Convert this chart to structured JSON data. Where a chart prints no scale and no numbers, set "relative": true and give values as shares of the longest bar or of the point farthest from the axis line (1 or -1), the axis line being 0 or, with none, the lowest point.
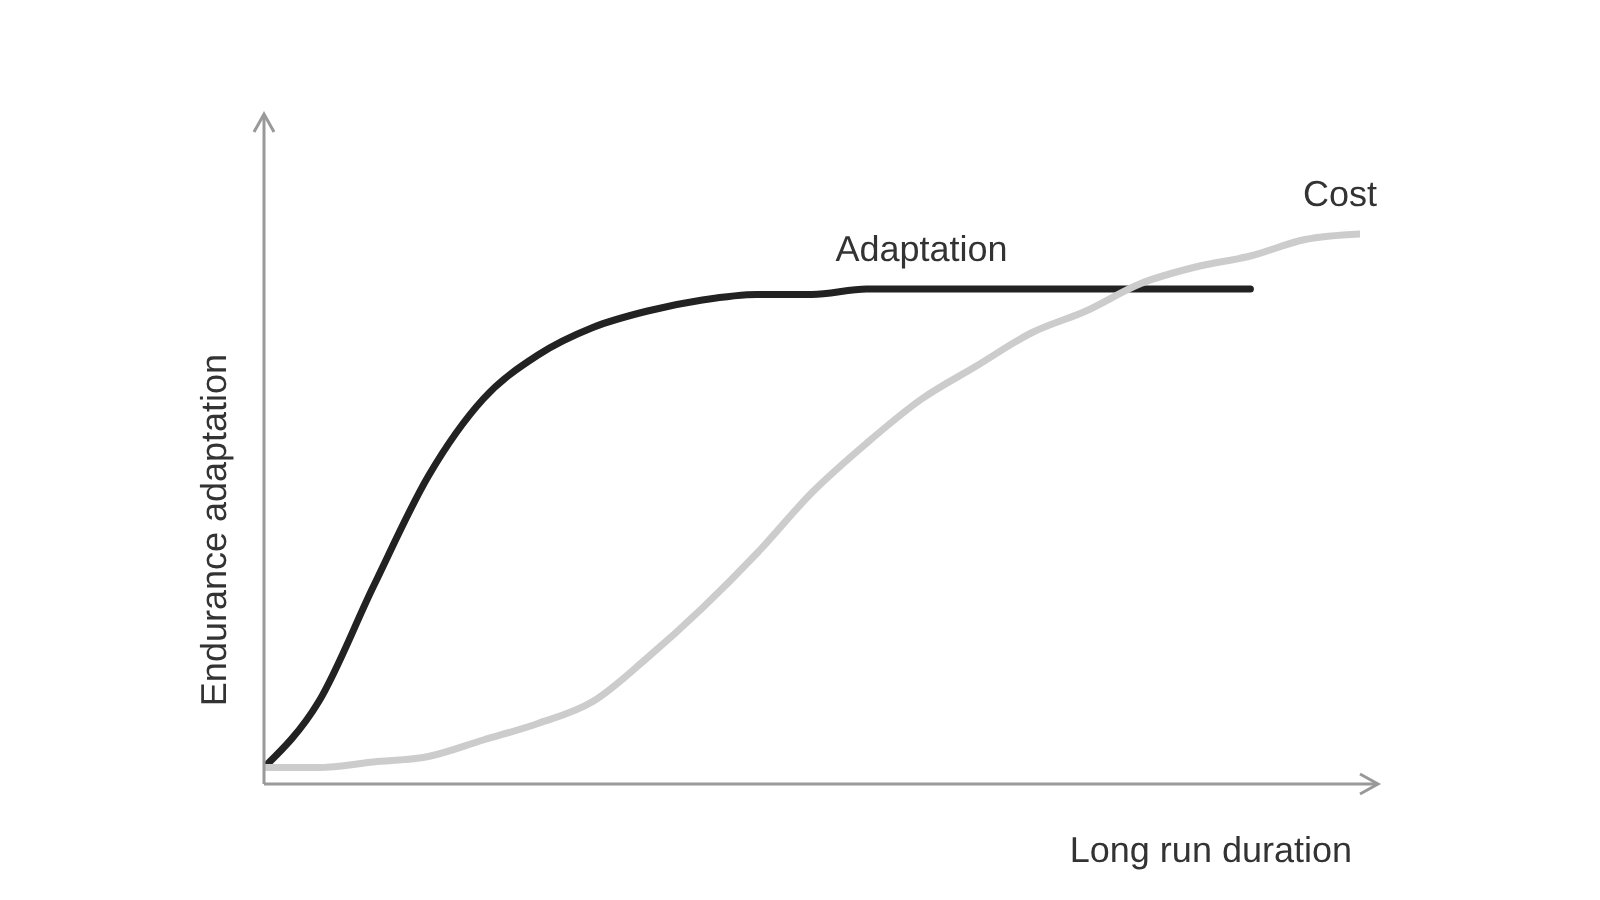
{
  "chart_data": {
    "type": "line",
    "relative": true,
    "xlabel": "Long run duration",
    "ylabel": "Endurance adaptation",
    "categories": [
      null,
      null,
      null,
      null,
      null,
      null,
      null,
      null,
      null,
      null,
      null,
      null,
      null,
      null,
      null,
      null,
      null,
      null,
      null,
      null,
      null
    ],
    "grid": false,
    "legend": false,
    "marker": "none",
    "line_style": "solid",
    "series": [
      {
        "name": "Adaptation",
        "color": "#222222",
        "values": [
          0.03,
          0.15,
          0.36,
          0.56,
          0.7,
          0.78,
          0.83,
          0.86,
          0.88,
          0.89,
          0.89,
          0.9,
          0.9,
          0.9,
          0.9,
          0.9,
          0.9,
          0.9,
          0.9,
          null,
          null
        ]
      },
      {
        "name": "Cost",
        "color": "#cccccc",
        "values": [
          0.03,
          0.03,
          0.04,
          0.05,
          0.08,
          0.11,
          0.15,
          0.23,
          0.32,
          0.42,
          0.53,
          0.62,
          0.7,
          0.76,
          0.82,
          0.86,
          0.91,
          0.94,
          0.96,
          0.99,
          1
        ]
      }
    ]
  }
}
